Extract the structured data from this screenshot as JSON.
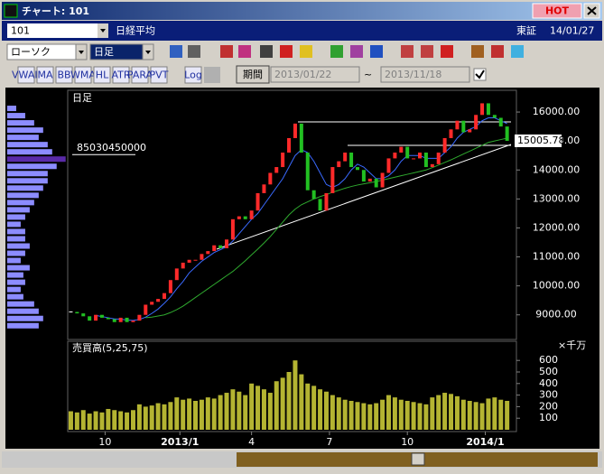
{
  "window": {
    "title": "チャート: 101",
    "hot": "HOT"
  },
  "header": {
    "code": "101",
    "name": "日経平均",
    "exchange": "東証",
    "date": "14/01/27"
  },
  "toolbar": {
    "chart_style": "ローソク",
    "interval": "日足",
    "indicators": [
      "VWAP",
      "MA",
      "BB",
      "WMA",
      "HL",
      "ATR",
      "PARA",
      "PVT"
    ],
    "log": "Log",
    "period": "期間",
    "from": "2013/01/22",
    "tilde": "~",
    "to": "2013/11/18"
  },
  "chart_data": {
    "type": "candlestick",
    "panel_label": "日足",
    "xlim": [
      -0.5,
      71.5
    ],
    "xticks": [
      {
        "value": 5.5,
        "label": "10"
      },
      {
        "value": 17.5,
        "label": "2013/1"
      },
      {
        "value": 29,
        "label": "4"
      },
      {
        "value": 41.5,
        "label": "7"
      },
      {
        "value": 54,
        "label": "10"
      },
      {
        "value": 66.5,
        "label": "2014/1"
      }
    ],
    "ylim": [
      8150,
      16750
    ],
    "yticks": [
      {
        "value": 9000,
        "label": "9000.00"
      },
      {
        "value": 10000,
        "label": "10000.00"
      },
      {
        "value": 11000,
        "label": "11000.00"
      },
      {
        "value": 12000,
        "label": "12000.00"
      },
      {
        "value": 13000,
        "label": "13000.00"
      },
      {
        "value": 14000,
        "label": "14000.00"
      },
      {
        "value": 15000,
        "label": "15000.00"
      },
      {
        "value": 16000,
        "label": "16000.00"
      }
    ],
    "up_color": "#ff2a2a",
    "down_color": "#22c022",
    "series": [
      {
        "color": "#ffffff",
        "values": [
          9100,
          9050,
          8950,
          8800,
          9000,
          8900,
          8850,
          8750,
          8900,
          8750,
          8800,
          9000,
          9350,
          9450,
          9550,
          9750,
          10200,
          10600,
          10800,
          10900,
          10900,
          11100,
          11200,
          11400,
          11300,
          11600,
          12300,
          12400,
          12300,
          12600,
          13200,
          13500,
          13900,
          14100,
          14600,
          15100,
          15600,
          14600,
          13300,
          13000,
          12600,
          13200,
          14100,
          14300,
          14600,
          14100,
          14000,
          13600,
          13700,
          13400,
          13900,
          14400,
          14600,
          14800,
          14400,
          14400,
          14600,
          14100,
          14200,
          14600,
          15100,
          15400,
          15700,
          15300,
          15400,
          15900,
          16300,
          15900,
          15800,
          15500,
          15005.78
        ]
      },
      {
        "color": "#3a6aff",
        "values": [
          null,
          null,
          null,
          null,
          8980,
          8940,
          8900,
          8860,
          8850,
          8820,
          8810,
          8840,
          8920,
          9050,
          9200,
          9400,
          9620,
          9900,
          10150,
          10450,
          10650,
          10850,
          11000,
          11150,
          11250,
          11350,
          11550,
          11800,
          12050,
          12300,
          12500,
          12800,
          13100,
          13400,
          13700,
          14100,
          14500,
          14700,
          14600,
          14300,
          13900,
          13500,
          13400,
          13500,
          13700,
          14000,
          14200,
          14100,
          13900,
          13700,
          13700,
          13800,
          14000,
          14300,
          14500,
          14500,
          14500,
          14400,
          14400,
          14400,
          14600,
          14800,
          15100,
          15300,
          15400,
          15500,
          15700,
          15800,
          15800,
          15700,
          15600
        ]
      },
      {
        "color": "#2faa2f",
        "values": [
          null,
          null,
          null,
          null,
          null,
          null,
          null,
          null,
          null,
          null,
          null,
          null,
          8900,
          8920,
          8960,
          9000,
          9080,
          9180,
          9300,
          9450,
          9600,
          9750,
          9900,
          10050,
          10200,
          10350,
          10500,
          10680,
          10870,
          11070,
          11270,
          11480,
          11700,
          11950,
          12200,
          12450,
          12650,
          12800,
          12900,
          13000,
          13080,
          13150,
          13230,
          13300,
          13370,
          13430,
          13480,
          13520,
          13560,
          13600,
          13650,
          13700,
          13750,
          13800,
          13850,
          13900,
          13950,
          14000,
          14080,
          14170,
          14260,
          14350,
          14450,
          14550,
          14650,
          14750,
          14850,
          14950,
          15000,
          15050,
          15100
        ]
      }
    ],
    "profile": {
      "bins": [
        8500,
        8750,
        9000,
        9250,
        9500,
        9750,
        10000,
        10250,
        10500,
        10750,
        11000,
        11250,
        11500,
        11750,
        12000,
        12250,
        12500,
        12750,
        13000,
        13250,
        13500,
        13750,
        14000,
        14250,
        14500,
        14750,
        15000,
        15250,
        15500,
        15750,
        16000,
        16250
      ],
      "values": [
        45800000000,
        52300000000,
        45800000000,
        39200000000,
        23500000000,
        19600000000,
        26200000000,
        23500000000,
        32700000000,
        19600000000,
        26200000000,
        32700000000,
        26200000000,
        26200000000,
        19600000000,
        26200000000,
        32700000000,
        39200000000,
        45800000000,
        52300000000,
        58900000000,
        58900000000,
        71900000000,
        85030450000,
        65400000000,
        58900000000,
        45800000000,
        52300000000,
        39200000000,
        26200000000,
        13100000000
      ],
      "xlim": [
        0,
        88000000000
      ],
      "color": "#8c8cff",
      "highlight_color": "#5a2aa8"
    },
    "volume": {
      "label": "売買高(5,25,75)",
      "unit": "×千万",
      "color": "#b4b432",
      "ylim": [
        0,
        750
      ],
      "yticks": [
        100,
        200,
        300,
        400,
        500,
        600
      ],
      "values": [
        160,
        150,
        170,
        140,
        160,
        150,
        180,
        170,
        160,
        150,
        170,
        220,
        200,
        210,
        230,
        220,
        240,
        280,
        260,
        270,
        250,
        260,
        280,
        270,
        300,
        320,
        350,
        330,
        300,
        400,
        380,
        350,
        320,
        420,
        450,
        500,
        600,
        480,
        400,
        380,
        350,
        330,
        300,
        280,
        260,
        250,
        240,
        230,
        220,
        230,
        260,
        300,
        280,
        260,
        250,
        240,
        230,
        220,
        280,
        300,
        320,
        310,
        290,
        260,
        250,
        240,
        230,
        270,
        280,
        260,
        250
      ]
    }
  }
}
